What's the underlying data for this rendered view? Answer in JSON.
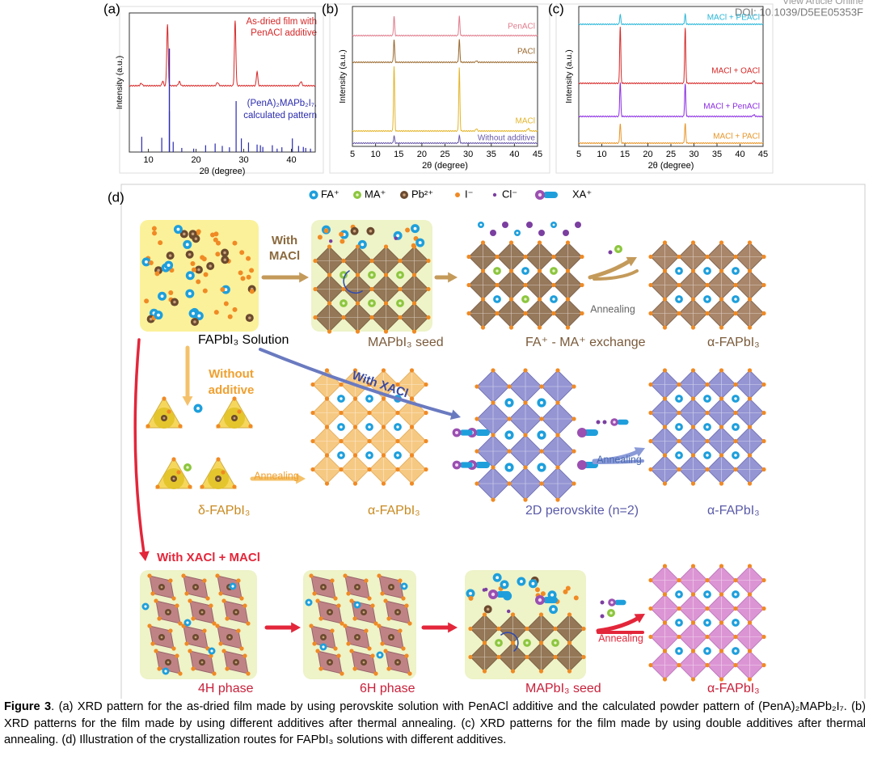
{
  "header": {
    "note": "View Article Online",
    "doi": "DOI: 10.1039/D5EE05353F"
  },
  "panels": {
    "a": {
      "label": "(a)",
      "ylabel": "Intensity (a.u.)",
      "xlabel": "2θ (degree)",
      "xlim": [
        6,
        45
      ],
      "xticks": [
        10,
        20,
        30,
        40
      ],
      "traces": [
        [
          "As-dried film with",
          "PenACl additive"
        ],
        [
          "(PenA)₂MAPb₂I₇,",
          "calculated pattern"
        ]
      ]
    },
    "b": {
      "label": "(b)",
      "ylabel": "Intensity (a.u.)",
      "xlabel": "2θ (degree)",
      "xlim": [
        5,
        45
      ],
      "xticks": [
        5,
        10,
        15,
        20,
        25,
        30,
        35,
        40,
        45
      ],
      "traces": [
        "PenACl",
        "PACl",
        "MACl",
        "Without additive"
      ]
    },
    "c": {
      "label": "(c)",
      "ylabel": "Intensity (a.u.)",
      "xlabel": "2θ (degree)",
      "xlim": [
        5,
        45
      ],
      "xticks": [
        5,
        10,
        15,
        20,
        25,
        30,
        35,
        40,
        45
      ],
      "traces": [
        "MACl + PEACl",
        "MACl + OACl",
        "MACl + PenACl",
        "MACl + PACl"
      ]
    },
    "d": {
      "label": "(d)",
      "legend": [
        "FA⁺",
        "MA⁺",
        "Pb²⁺",
        "I⁻",
        "Cl⁻",
        "XA⁺"
      ],
      "row1": {
        "solution": "FAPbI₃ Solution",
        "with": [
          "With",
          "MACl"
        ],
        "seed": "MAPbI₃ seed",
        "exchange": "FA⁺ - MA⁺ exchange",
        "annealing": "Annealing",
        "product": "α-FAPbI₃"
      },
      "row2": {
        "without": [
          "Without",
          "additive"
        ],
        "delta": "δ-FAPbI₃",
        "annealing1": "Annealing",
        "alpha1": "α-FAPbI₃",
        "withXA": "With XACl",
        "twoD": "2D perovskite (n=2)",
        "annealing2": "Annealing",
        "alpha2": "α-FAPbI₃"
      },
      "row3": {
        "with": "With XACl + MACl",
        "h4": "4H phase",
        "h6": "6H phase",
        "seed": "MAPbI₃ seed",
        "annealing": "Annealing",
        "product": "α-FAPbI₃"
      }
    }
  },
  "caption": {
    "label": "Figure 3",
    "text": ". (a) XRD pattern for the as-dried film made by using perovskite solution with PenACl additive and the calculated powder pattern of (PenA)₂MAPb₂I₇. (b) XRD patterns for the film made by using different additives after thermal annealing. (c) XRD patterns for the film made by using double additives after thermal annealing. (d) Illustration of the crystallization routes for FAPbI₃ solutions with different additives."
  }
}
